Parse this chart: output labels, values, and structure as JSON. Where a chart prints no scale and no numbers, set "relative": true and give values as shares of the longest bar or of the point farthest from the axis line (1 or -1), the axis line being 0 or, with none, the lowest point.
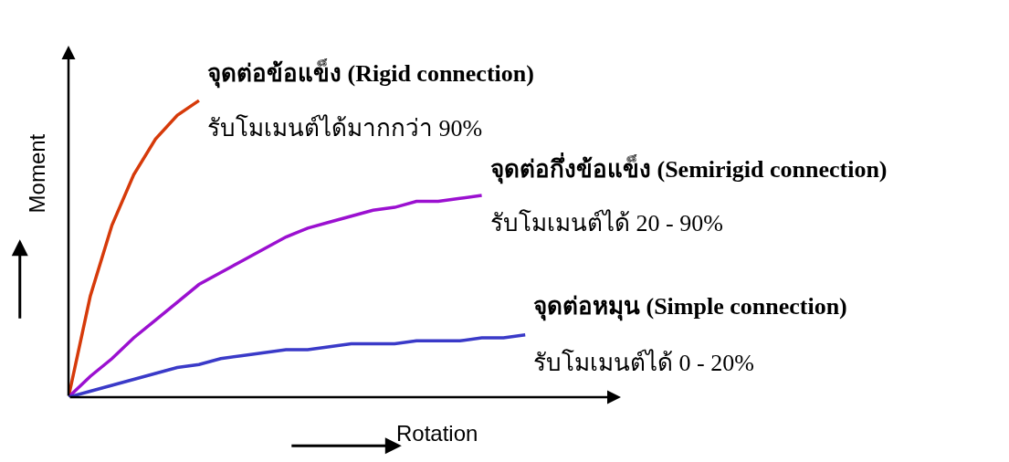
{
  "chart_data": {
    "type": "line",
    "relative": true,
    "xlabel": "Rotation",
    "ylabel": "Moment",
    "marker": "none",
    "line_style": "solid",
    "categories": [
      null,
      null,
      null,
      null,
      null,
      null,
      null,
      null,
      null,
      null,
      null,
      null,
      null,
      null,
      null,
      null,
      null,
      null,
      null,
      null,
      null,
      null
    ],
    "series": [
      {
        "name": "จุดต่อข้อแข็ง (Rigid connection)",
        "color": "#d63a0a",
        "values": [
          0,
          0.34,
          0.58,
          0.75,
          0.87,
          0.95,
          1,
          null,
          null,
          null,
          null,
          null,
          null,
          null,
          null,
          null,
          null,
          null,
          null,
          null,
          null,
          null
        ]
      },
      {
        "name": "จุดต่อกึ่งข้อแข็ง (Semirigid connection)",
        "color": "#9b10d0",
        "values": [
          0,
          0.07,
          0.13,
          0.2,
          0.26,
          0.32,
          0.38,
          0.42,
          0.46,
          0.5,
          0.54,
          0.57,
          0.59,
          0.61,
          0.63,
          0.64,
          0.66,
          0.66,
          0.67,
          0.68,
          null,
          null
        ]
      },
      {
        "name": "จุดต่อหมุน (Simple connection)",
        "color": "#3a3ac8",
        "values": [
          0,
          0.02,
          0.04,
          0.06,
          0.08,
          0.1,
          0.11,
          0.13,
          0.14,
          0.15,
          0.16,
          0.16,
          0.17,
          0.18,
          0.18,
          0.18,
          0.19,
          0.19,
          0.19,
          0.2,
          0.2,
          0.21
        ]
      }
    ],
    "annotations": [
      "รับโมเมนต์ได้มากกว่า 90%",
      "รับโมเมนต์ได้ 20 - 90%",
      "รับโมเมนต์ได้ 0 - 20%"
    ]
  }
}
